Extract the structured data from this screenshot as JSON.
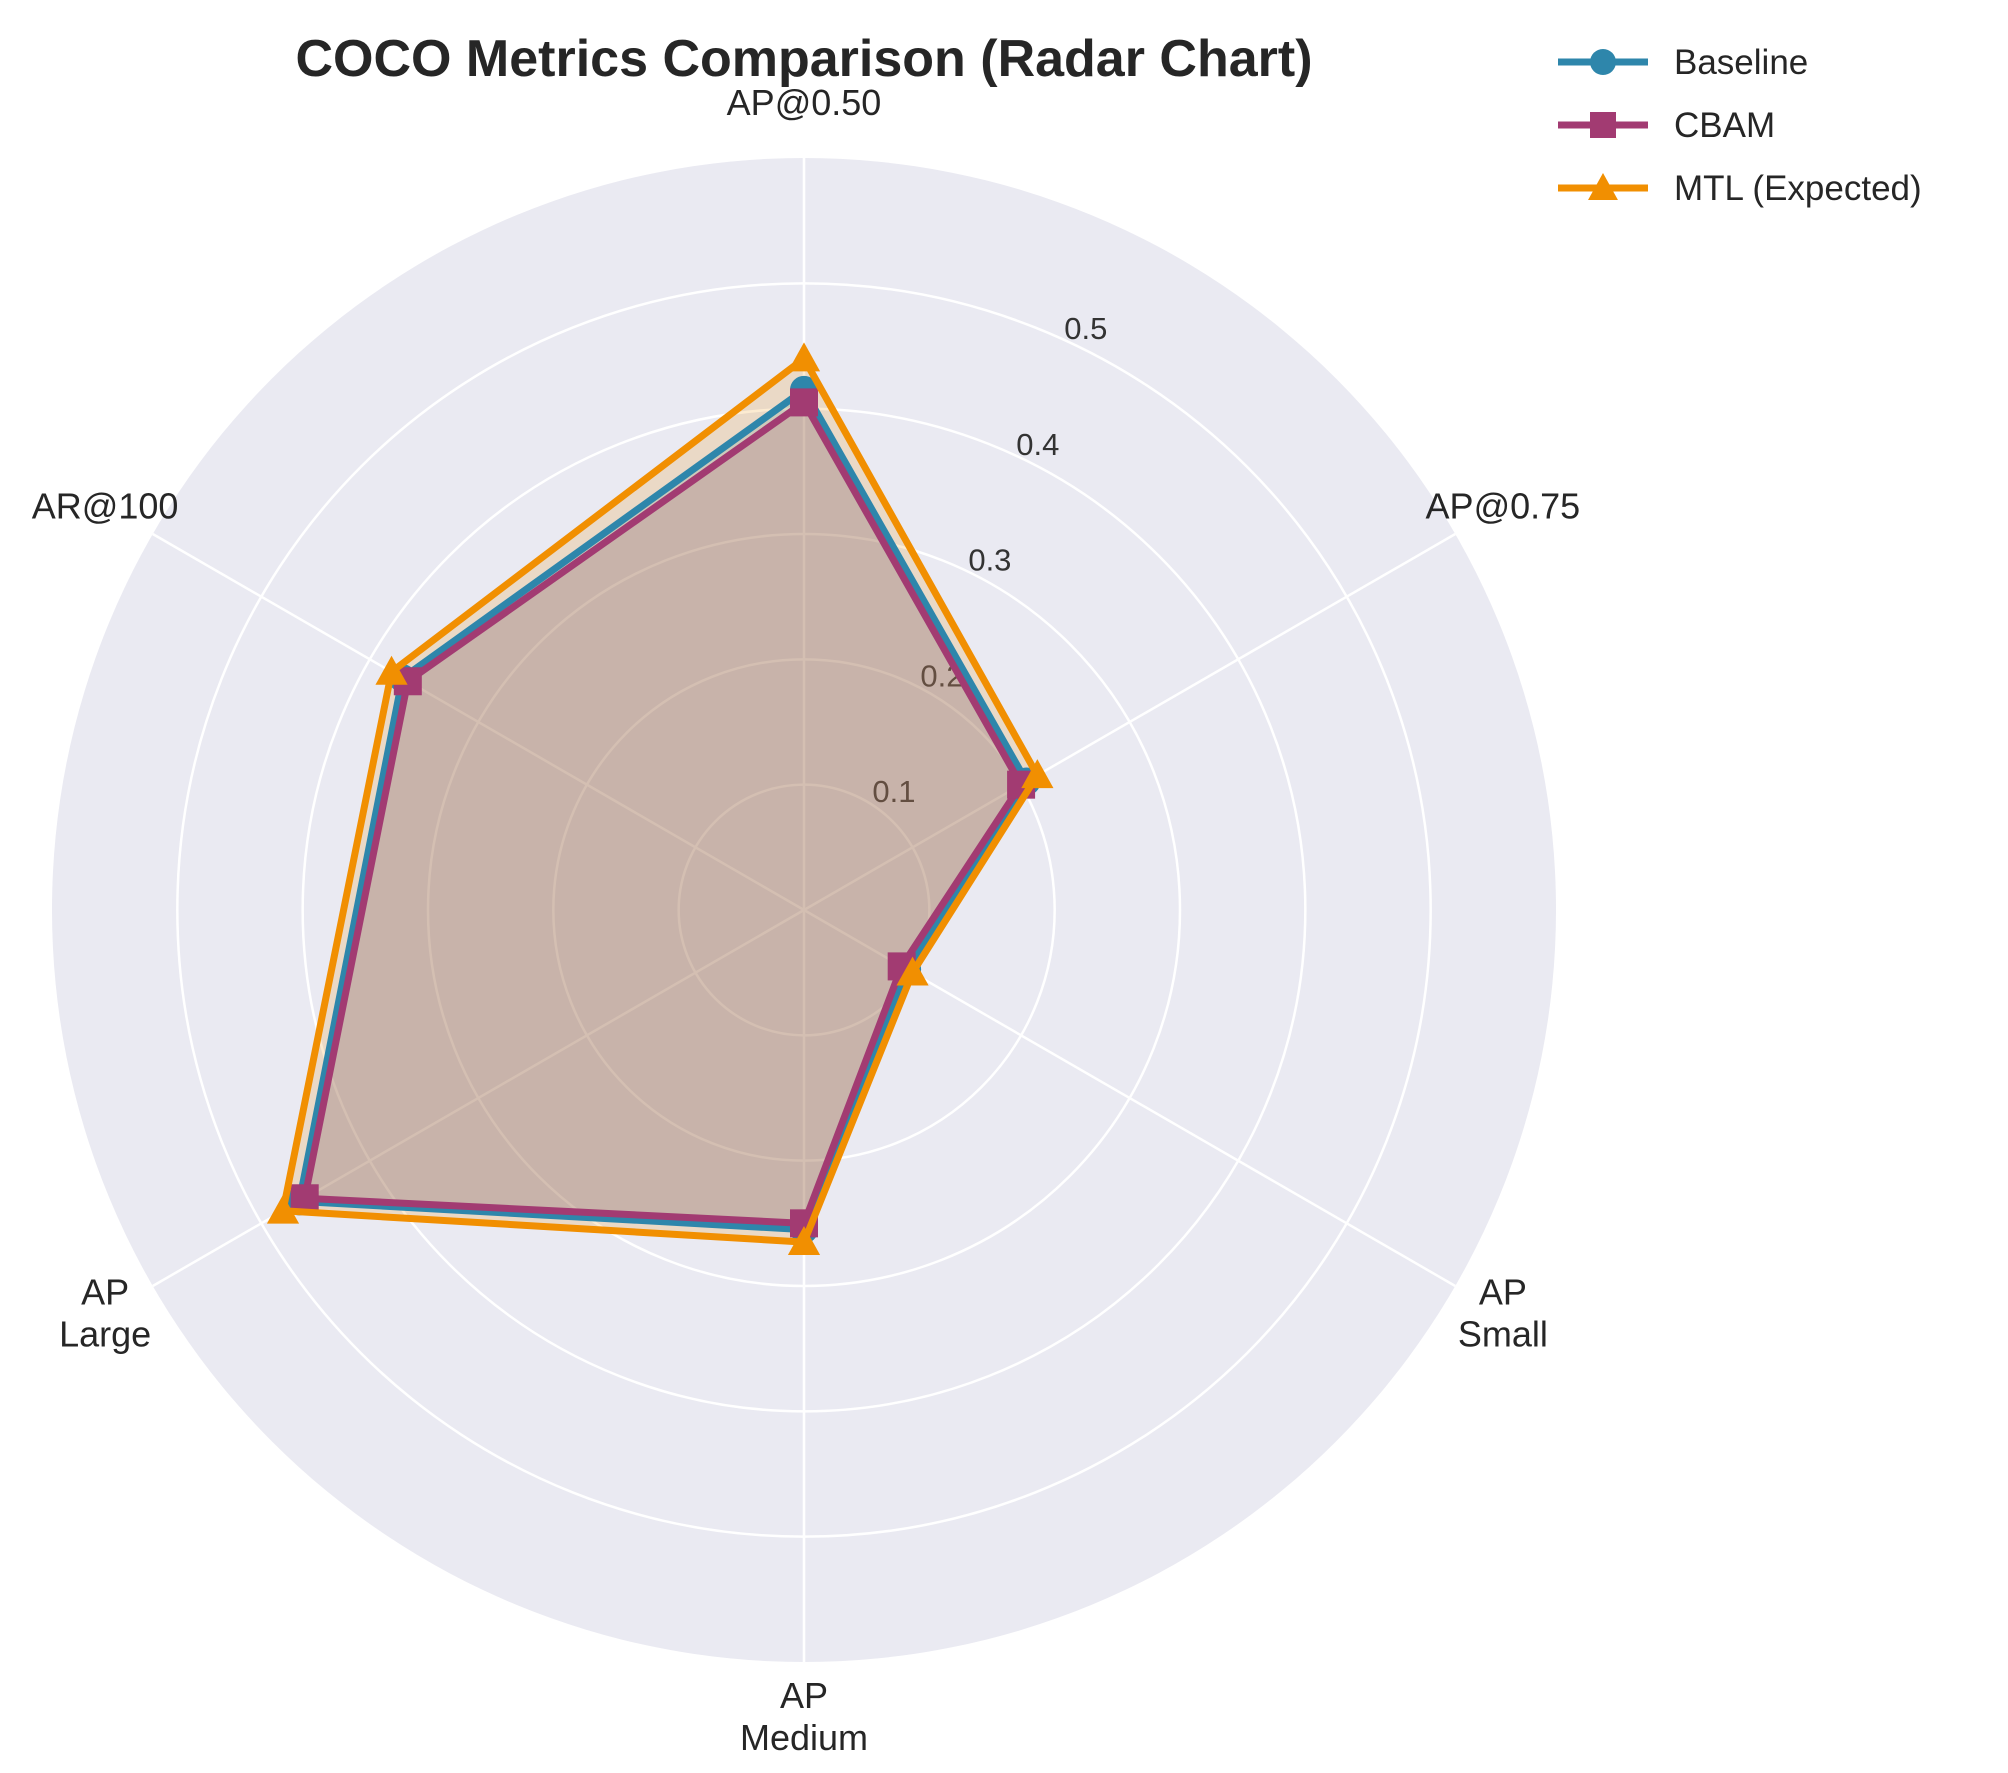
{
  "chart_data": {
    "type": "radar",
    "title": "COCO Metrics Comparison (Radar Chart)",
    "axes": [
      [
        "AP@0.50"
      ],
      [
        "AP@0.75"
      ],
      [
        "AP",
        "Small"
      ],
      [
        "AP",
        "Medium"
      ],
      [
        "AP",
        "Large"
      ],
      [
        "AR@100"
      ]
    ],
    "rmax": 0.6,
    "r_ticks": [
      0.1,
      0.2,
      0.3,
      0.4,
      0.5
    ],
    "r_tick_labels": [
      "0.1",
      "0.2",
      "0.3",
      "0.4",
      "0.5"
    ],
    "series": [
      {
        "name": "Baseline",
        "marker": "circle",
        "color": "#2e86ab",
        "values": [
          0.415,
          0.205,
          0.095,
          0.255,
          0.465,
          0.37
        ]
      },
      {
        "name": "CBAM",
        "marker": "square",
        "color": "#a23b72",
        "values": [
          0.405,
          0.2,
          0.09,
          0.25,
          0.46,
          0.365
        ]
      },
      {
        "name": "MTL (Expected)",
        "marker": "triangle",
        "color": "#f18f01",
        "values": [
          0.44,
          0.215,
          0.1,
          0.265,
          0.48,
          0.38
        ]
      }
    ],
    "grid": true,
    "legend": "top-right",
    "background_color": "#eaeaf2"
  }
}
